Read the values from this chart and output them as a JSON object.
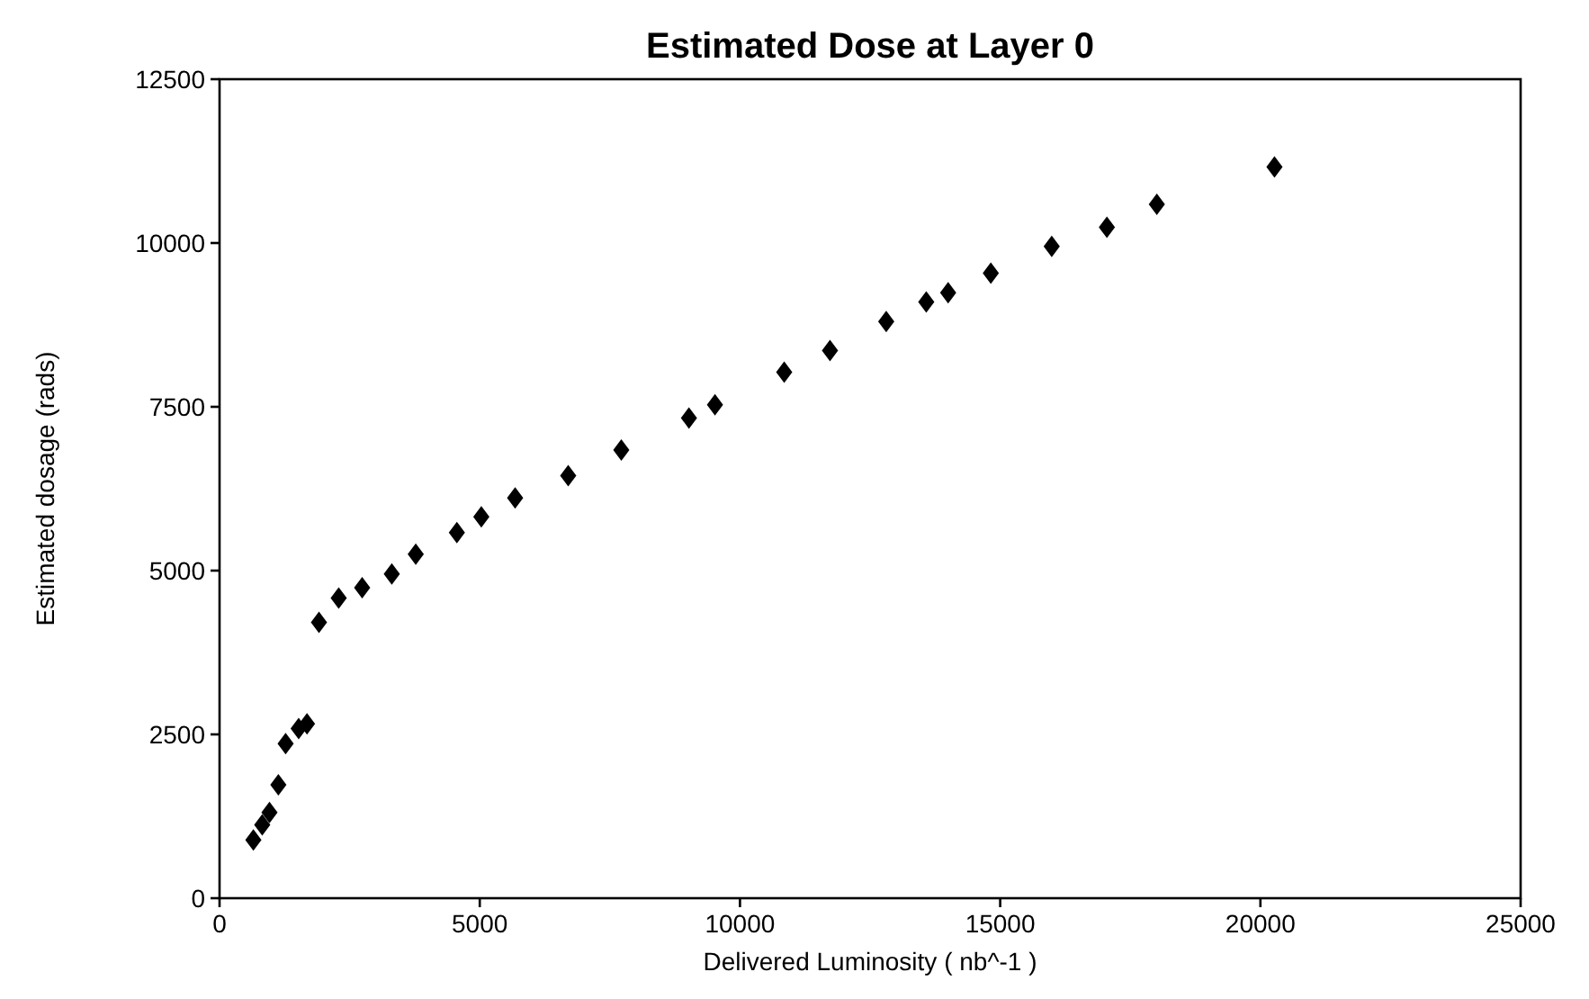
{
  "chart_data": {
    "type": "scatter",
    "title": "Estimated Dose at Layer 0",
    "xlabel": "Delivered Luminosity ( nb^-1 )",
    "ylabel": "Estimated dosage (rads)",
    "x": [
      650,
      820,
      960,
      1130,
      1270,
      1520,
      1680,
      1910,
      2290,
      2740,
      3310,
      3770,
      4560,
      5030,
      5680,
      6700,
      7720,
      9020,
      9520,
      10850,
      11730,
      12810,
      13580,
      14000,
      14820,
      15990,
      17050,
      18010,
      20270
    ],
    "series": [
      {
        "color": "#000000",
        "values": [
          890,
          1120,
          1310,
          1730,
          2360,
          2590,
          2660,
          4210,
          4580,
          4740,
          4950,
          5250,
          5580,
          5820,
          6110,
          6450,
          6840,
          7330,
          7530,
          8030,
          8360,
          8800,
          9100,
          9240,
          9540,
          9950,
          10240,
          10590,
          11160
        ]
      }
    ],
    "xlim": [
      0,
      25000
    ],
    "xticks": [
      0,
      5000,
      10000,
      15000,
      20000,
      25000
    ],
    "ylim": [
      0,
      12500
    ],
    "yticks": [
      0,
      2500,
      5000,
      7500,
      10000,
      12500
    ],
    "grid": false,
    "marker": "diamond"
  }
}
